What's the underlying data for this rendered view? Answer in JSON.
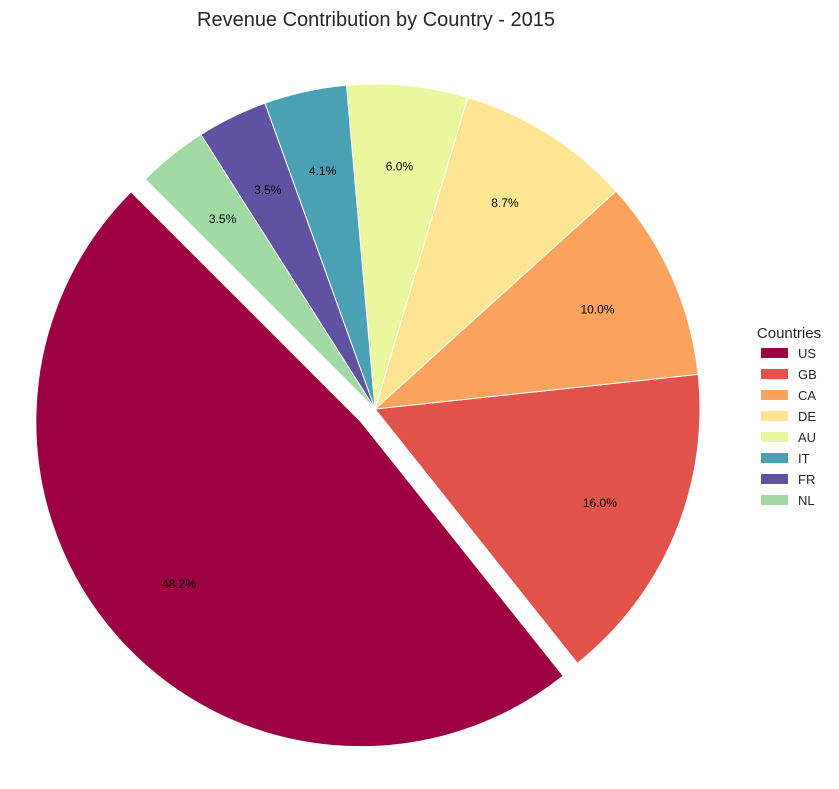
{
  "chart_data": {
    "type": "pie",
    "title": "Revenue Contribution by Country - 2015",
    "categories": [
      "US",
      "GB",
      "CA",
      "DE",
      "AU",
      "IT",
      "FR",
      "NL"
    ],
    "values": [
      48.2,
      16.0,
      10.0,
      8.7,
      6.0,
      4.1,
      3.5,
      3.5
    ],
    "labels": [
      "48.2%",
      "16.0%",
      "10.0%",
      "8.7%",
      "6.0%",
      "4.1%",
      "3.5%",
      "3.5%"
    ],
    "colors": [
      "#9e0142",
      "#e1534a",
      "#fba35e",
      "#fee593",
      "#eaf79e",
      "#49a1b3",
      "#5f52a3",
      "#a0d9a3"
    ],
    "exploded": [
      "US"
    ],
    "start_angle_deg": 135,
    "direction": "counterclockwise",
    "legend": {
      "title": "Countries",
      "placement": "center-right"
    }
  }
}
